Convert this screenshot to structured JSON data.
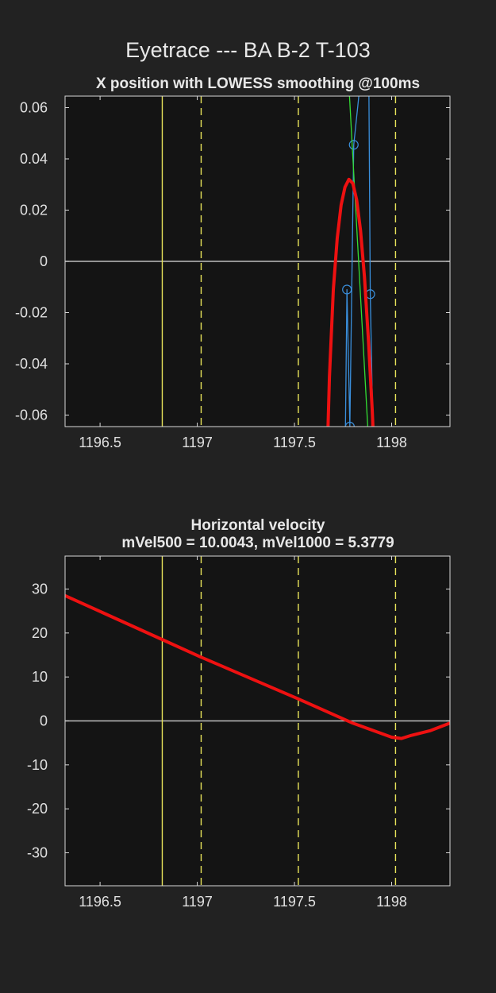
{
  "figure": {
    "suptitle": "Eyetrace --- BA B-2 T-103"
  },
  "chart_data": [
    {
      "type": "line",
      "title": "X position with LOWESS smoothing @100ms",
      "subtitle": "",
      "xlabel": "",
      "ylabel": "",
      "xlim": [
        1196.32,
        1198.3
      ],
      "ylim": [
        -0.0645,
        0.0645
      ],
      "x_ticks": [
        1196.5,
        1197,
        1197.5,
        1198
      ],
      "x_tick_labels": [
        "1196.5",
        "1197",
        "1197.5",
        "1198"
      ],
      "y_ticks": [
        -0.06,
        -0.04,
        -0.02,
        0,
        0.02,
        0.04,
        0.06
      ],
      "y_tick_labels": [
        "-0.06",
        "-0.04",
        "-0.02",
        "0",
        "0.02",
        "0.04",
        "0.06"
      ],
      "grid": false,
      "zero_line": 0,
      "vertical_lines": [
        {
          "x": 1196.82,
          "style": "solid",
          "color": "#e8e45a"
        },
        {
          "x": 1197.02,
          "style": "dashed",
          "color": "#e8e45a"
        },
        {
          "x": 1197.52,
          "style": "dashed",
          "color": "#e8e45a"
        },
        {
          "x": 1198.02,
          "style": "dashed",
          "color": "#e8e45a"
        }
      ],
      "series": [
        {
          "kind": "raw-samples",
          "color": "#3a8fdc",
          "marker": "circle",
          "x": [
            1197.755,
            1197.77,
            1197.785,
            1197.805,
            1197.88,
            1197.89,
            1197.915
          ],
          "y": [
            -0.115,
            -0.011,
            -0.0645,
            0.0455,
            0.1,
            -0.0128,
            -0.11
          ]
        },
        {
          "kind": "fit-line",
          "color": "#33dd33",
          "x": [
            1197.75,
            1197.91
          ],
          "y": [
            0.11,
            -0.11
          ]
        },
        {
          "kind": "lowess-smoothed",
          "color": "#ee1111",
          "x": [
            1197.665,
            1197.68,
            1197.7,
            1197.72,
            1197.74,
            1197.76,
            1197.78,
            1197.8,
            1197.82,
            1197.84,
            1197.86,
            1197.88,
            1197.9,
            1197.915
          ],
          "y": [
            -0.085,
            -0.045,
            -0.011,
            0.009,
            0.022,
            0.029,
            0.032,
            0.0305,
            0.024,
            0.012,
            -0.006,
            -0.03,
            -0.058,
            -0.085
          ]
        }
      ]
    },
    {
      "type": "line",
      "title": "Horizontal velocity",
      "subtitle": "mVel500 = 10.0043, mVel1000 = 5.3779",
      "xlabel": "",
      "ylabel": "",
      "xlim": [
        1196.32,
        1198.3
      ],
      "ylim": [
        -37.5,
        37.5
      ],
      "x_ticks": [
        1196.5,
        1197,
        1197.5,
        1198
      ],
      "x_tick_labels": [
        "1196.5",
        "1197",
        "1197.5",
        "1198"
      ],
      "y_ticks": [
        -30,
        -20,
        -10,
        0,
        10,
        20,
        30
      ],
      "y_tick_labels": [
        "-30",
        "-20",
        "-10",
        "0",
        "10",
        "20",
        "30"
      ],
      "grid": false,
      "zero_line": 0,
      "vertical_lines": [
        {
          "x": 1196.82,
          "style": "solid",
          "color": "#e8e45a"
        },
        {
          "x": 1197.02,
          "style": "dashed",
          "color": "#e8e45a"
        },
        {
          "x": 1197.52,
          "style": "dashed",
          "color": "#e8e45a"
        },
        {
          "x": 1198.02,
          "style": "dashed",
          "color": "#e8e45a"
        }
      ],
      "series": [
        {
          "kind": "velocity",
          "color": "#ee1111",
          "x": [
            1196.32,
            1196.82,
            1197.02,
            1197.52,
            1197.8,
            1198.0,
            1198.05,
            1198.1,
            1198.2,
            1198.3
          ],
          "y": [
            28.5,
            18.5,
            14.5,
            5,
            -0.5,
            -3.7,
            -4.0,
            -3.3,
            -2.2,
            -0.5
          ]
        }
      ]
    }
  ]
}
